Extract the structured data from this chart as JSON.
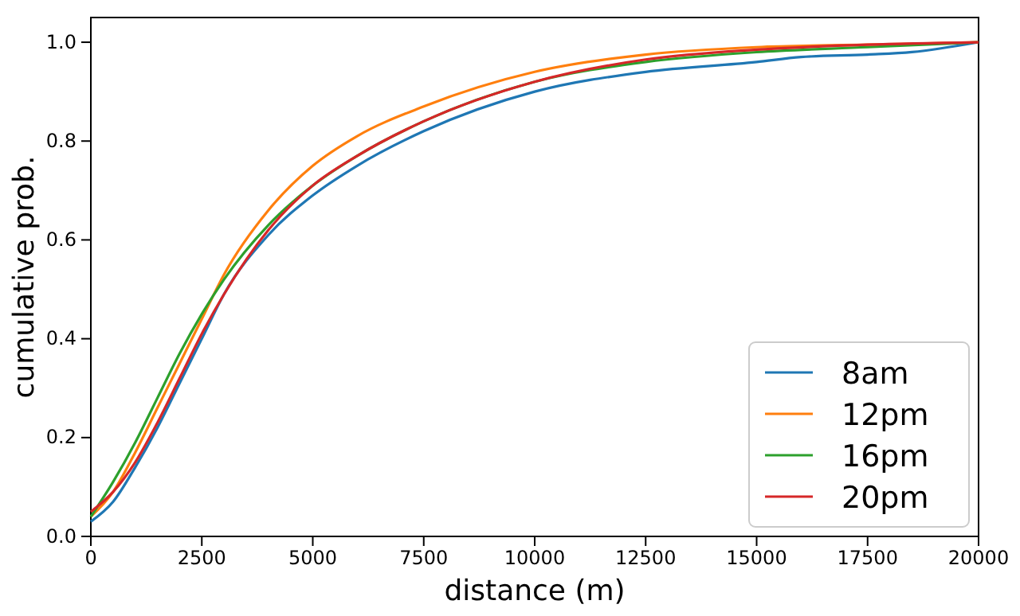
{
  "chart_data": {
    "type": "line",
    "xlabel": "distance (m)",
    "ylabel": "cumulative prob.",
    "xlim": [
      0,
      20000
    ],
    "ylim": [
      0,
      1.05
    ],
    "xticks": [
      0,
      2500,
      5000,
      7500,
      10000,
      12500,
      15000,
      17500,
      20000
    ],
    "yticks": [
      {
        "value": 0,
        "label": "0.0"
      },
      {
        "value": 0.2,
        "label": "0.2"
      },
      {
        "value": 0.4,
        "label": "0.4"
      },
      {
        "value": 0.6,
        "label": "0.6"
      },
      {
        "value": 0.8,
        "label": "0.8"
      },
      {
        "value": 1,
        "label": "1.0"
      }
    ],
    "legend": "bottom right",
    "grid": false,
    "marker": "none",
    "line_style": "solid",
    "series": [
      {
        "name": "8am",
        "color": "#1f77b4",
        "x": [
          0,
          500,
          1000,
          1500,
          2000,
          2500,
          3000,
          4000,
          5000,
          6000,
          7500,
          10000,
          12500,
          15000,
          16000,
          17500,
          18500,
          20000
        ],
        "values": [
          0.03,
          0.07,
          0.14,
          0.22,
          0.31,
          0.4,
          0.49,
          0.61,
          0.69,
          0.75,
          0.82,
          0.9,
          0.94,
          0.96,
          0.97,
          0.975,
          0.98,
          1.0
        ]
      },
      {
        "name": "12pm",
        "color": "#ff7f0e",
        "x": [
          0,
          500,
          1000,
          1500,
          2000,
          2500,
          3000,
          4000,
          5000,
          6000,
          7500,
          10000,
          12500,
          15000,
          17500,
          20000
        ],
        "values": [
          0.04,
          0.09,
          0.17,
          0.26,
          0.35,
          0.44,
          0.53,
          0.66,
          0.75,
          0.81,
          0.87,
          0.94,
          0.975,
          0.99,
          0.995,
          1.0
        ]
      },
      {
        "name": "16pm",
        "color": "#2ca02c",
        "x": [
          0,
          500,
          1000,
          1500,
          2000,
          2500,
          3000,
          4000,
          5000,
          6000,
          7500,
          10000,
          12500,
          15000,
          17500,
          20000
        ],
        "values": [
          0.04,
          0.11,
          0.19,
          0.28,
          0.37,
          0.45,
          0.52,
          0.63,
          0.71,
          0.77,
          0.84,
          0.92,
          0.96,
          0.98,
          0.99,
          1.0
        ]
      },
      {
        "name": "20pm",
        "color": "#d62728",
        "x": [
          0,
          500,
          1000,
          1500,
          2000,
          2500,
          3000,
          4000,
          5000,
          6000,
          7500,
          10000,
          12500,
          15000,
          17500,
          20000
        ],
        "values": [
          0.05,
          0.09,
          0.15,
          0.23,
          0.32,
          0.41,
          0.49,
          0.62,
          0.71,
          0.77,
          0.84,
          0.92,
          0.965,
          0.985,
          0.995,
          1.0
        ]
      }
    ]
  }
}
